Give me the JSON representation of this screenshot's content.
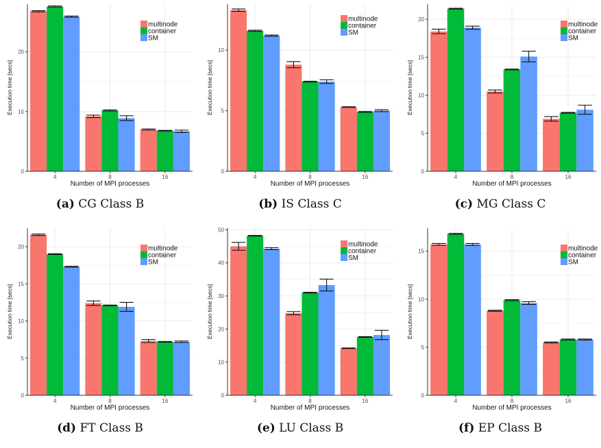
{
  "colors": {
    "multinode": "#F8766D",
    "container": "#00BA38",
    "SM": "#619CFF",
    "grid": "#ebebeb",
    "axis": "#333333"
  },
  "legend_labels": [
    "multinode",
    "container",
    "SM"
  ],
  "chart_data": [
    {
      "type": "bar",
      "caption_tag": "(a)",
      "caption_text": "CG Class B",
      "xlabel": "Number of MPI processes",
      "ylabel": "Execution time [secs]",
      "categories": [
        "4",
        "8",
        "16"
      ],
      "ylim": [
        0,
        28
      ],
      "yticks": [
        0,
        10,
        20
      ],
      "series": [
        {
          "name": "multinode",
          "values": [
            26.8,
            9.2,
            7.0
          ],
          "errors": [
            0.1,
            0.2,
            0.1
          ]
        },
        {
          "name": "container",
          "values": [
            27.6,
            10.2,
            6.8
          ],
          "errors": [
            0.1,
            0.1,
            0.05
          ]
        },
        {
          "name": "SM",
          "values": [
            25.9,
            8.9,
            6.7
          ],
          "errors": [
            0.1,
            0.4,
            0.2
          ]
        }
      ]
    },
    {
      "type": "bar",
      "caption_tag": "(b)",
      "caption_text": "IS Class C",
      "xlabel": "Number of MPI processes",
      "ylabel": "Execution time [secs]",
      "categories": [
        "4",
        "8",
        "16"
      ],
      "ylim": [
        0,
        13.8
      ],
      "yticks": [
        0,
        5,
        10
      ],
      "series": [
        {
          "name": "multinode",
          "values": [
            13.3,
            8.8,
            5.3
          ],
          "errors": [
            0.1,
            0.25,
            0.03
          ]
        },
        {
          "name": "container",
          "values": [
            11.6,
            7.4,
            4.9
          ],
          "errors": [
            0.05,
            0.03,
            0.03
          ]
        },
        {
          "name": "SM",
          "values": [
            11.2,
            7.4,
            5.0
          ],
          "errors": [
            0.05,
            0.15,
            0.08
          ]
        }
      ]
    },
    {
      "type": "bar",
      "caption_tag": "(c)",
      "caption_text": "MG Class C",
      "xlabel": "Number of MPI processes",
      "ylabel": "Execution time [secs]",
      "categories": [
        "4",
        "8",
        "16"
      ],
      "ylim": [
        0,
        22
      ],
      "yticks": [
        0,
        5,
        10,
        15,
        20
      ],
      "series": [
        {
          "name": "multinode",
          "values": [
            18.4,
            10.5,
            6.9
          ],
          "errors": [
            0.3,
            0.2,
            0.3
          ]
        },
        {
          "name": "container",
          "values": [
            21.4,
            13.4,
            7.7
          ],
          "errors": [
            0.05,
            0.05,
            0.05
          ]
        },
        {
          "name": "SM",
          "values": [
            18.9,
            15.1,
            8.1
          ],
          "errors": [
            0.2,
            0.7,
            0.6
          ]
        }
      ]
    },
    {
      "type": "bar",
      "caption_tag": "(d)",
      "caption_text": "FT Class B",
      "xlabel": "Number of MPI processes",
      "ylabel": "Execution time [secs]",
      "categories": [
        "4",
        "8",
        "16"
      ],
      "ylim": [
        0,
        22.5
      ],
      "yticks": [
        0,
        5,
        10,
        15,
        20
      ],
      "series": [
        {
          "name": "multinode",
          "values": [
            21.6,
            12.4,
            7.3
          ],
          "errors": [
            0.1,
            0.3,
            0.2
          ]
        },
        {
          "name": "container",
          "values": [
            19.0,
            12.1,
            7.2
          ],
          "errors": [
            0.05,
            0.05,
            0.05
          ]
        },
        {
          "name": "SM",
          "values": [
            17.3,
            11.9,
            7.2
          ],
          "errors": [
            0.05,
            0.6,
            0.1
          ]
        }
      ]
    },
    {
      "type": "bar",
      "caption_tag": "(e)",
      "caption_text": "LU Class B",
      "xlabel": "Number of MPI processes",
      "ylabel": "Execution time [secs]",
      "categories": [
        "4",
        "8",
        "16"
      ],
      "ylim": [
        0,
        50.5
      ],
      "yticks": [
        0,
        10,
        20,
        30,
        40,
        50
      ],
      "series": [
        {
          "name": "multinode",
          "values": [
            45.0,
            24.8,
            14.2
          ],
          "errors": [
            1.2,
            0.5,
            0.1
          ]
        },
        {
          "name": "container",
          "values": [
            48.2,
            31.0,
            17.6
          ],
          "errors": [
            0.1,
            0.1,
            0.1
          ]
        },
        {
          "name": "SM",
          "values": [
            44.3,
            33.3,
            18.2
          ],
          "errors": [
            0.3,
            1.8,
            1.4
          ]
        }
      ]
    },
    {
      "type": "bar",
      "caption_tag": "(f)",
      "caption_text": "EP Class B",
      "xlabel": "Number of MPI processes",
      "ylabel": "Execution time [secs]",
      "categories": [
        "4",
        "8",
        "16"
      ],
      "ylim": [
        0,
        17.4
      ],
      "yticks": [
        0,
        5,
        10,
        15
      ],
      "series": [
        {
          "name": "multinode",
          "values": [
            15.7,
            8.8,
            5.5
          ],
          "errors": [
            0.1,
            0.05,
            0.05
          ]
        },
        {
          "name": "container",
          "values": [
            16.8,
            9.9,
            5.8
          ],
          "errors": [
            0.05,
            0.05,
            0.05
          ]
        },
        {
          "name": "SM",
          "values": [
            15.7,
            9.6,
            5.8
          ],
          "errors": [
            0.1,
            0.15,
            0.05
          ]
        }
      ]
    }
  ]
}
